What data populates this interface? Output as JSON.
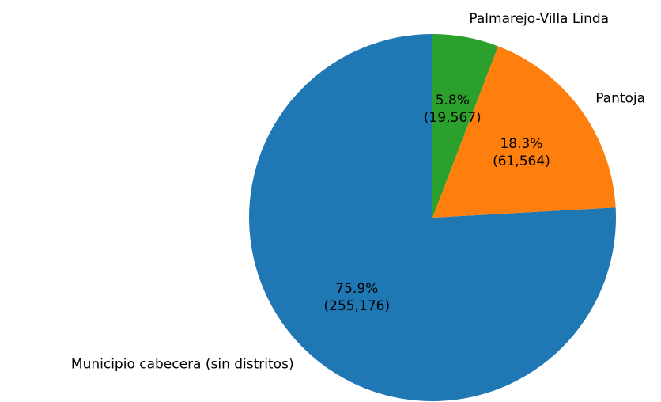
{
  "chart_data": {
    "type": "pie",
    "categories": [
      "Municipio cabecera (sin distritos)",
      "Pantoja",
      "Palmarejo-Villa Linda"
    ],
    "values": [
      255176,
      61564,
      19567
    ],
    "value_labels": [
      "(255,176)",
      "(61,564)",
      "(19,567)"
    ],
    "percent_labels": [
      "75.9%",
      "18.3%",
      "5.8%"
    ],
    "colors": [
      "#1f77b4",
      "#ff7f0e",
      "#2ca02c"
    ],
    "start_angle": 90,
    "counterclockwise": true
  }
}
